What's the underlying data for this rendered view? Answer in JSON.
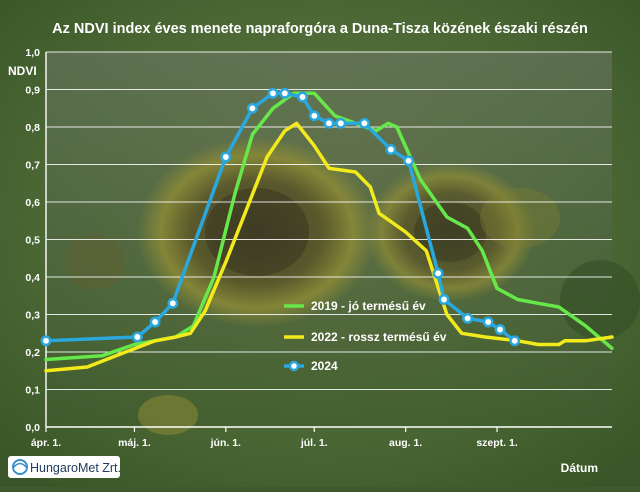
{
  "chart_data": {
    "type": "line",
    "title": "Az NDVI index éves menete napraforgóra a Duna-Tisza közének északi részén",
    "xlabel": "Dátum",
    "ylabel": "NDVI",
    "ylim": [
      0,
      1.0
    ],
    "yticks": [
      "0,0",
      "0,1",
      "0,2",
      "0,3",
      "0,4",
      "0,5",
      "0,6",
      "0,7",
      "0,8",
      "0,9",
      "1,0"
    ],
    "xticks": [
      {
        "label": "ápr. 1.",
        "x": "04-01"
      },
      {
        "label": "máj. 1.",
        "x": "05-01"
      },
      {
        "label": "jún. 1.",
        "x": "06-01"
      },
      {
        "label": "júl. 1.",
        "x": "07-01"
      },
      {
        "label": "aug. 1.",
        "x": "08-01"
      },
      {
        "label": "szept. 1.",
        "x": "09-01"
      }
    ],
    "xlim": [
      "04-01",
      "10-10"
    ],
    "grid": true,
    "legend_position": "right",
    "series": [
      {
        "name": "2019 - jó termésű év",
        "color": "#66e84a",
        "markers": false,
        "points": [
          [
            "04-01",
            0.18
          ],
          [
            "04-20",
            0.19
          ],
          [
            "05-01",
            0.22
          ],
          [
            "05-15",
            0.24
          ],
          [
            "05-21",
            0.27
          ],
          [
            "05-28",
            0.4
          ],
          [
            "06-04",
            0.62
          ],
          [
            "06-10",
            0.78
          ],
          [
            "06-17",
            0.85
          ],
          [
            "06-24",
            0.89
          ],
          [
            "07-01",
            0.89
          ],
          [
            "07-08",
            0.83
          ],
          [
            "07-15",
            0.81
          ],
          [
            "07-22",
            0.79
          ],
          [
            "07-26",
            0.81
          ],
          [
            "07-29",
            0.8
          ],
          [
            "08-06",
            0.66
          ],
          [
            "08-15",
            0.56
          ],
          [
            "08-22",
            0.53
          ],
          [
            "08-27",
            0.47
          ],
          [
            "09-01",
            0.37
          ],
          [
            "09-08",
            0.34
          ],
          [
            "09-15",
            0.33
          ],
          [
            "09-22",
            0.32
          ],
          [
            "10-01",
            0.27
          ],
          [
            "10-10",
            0.21
          ]
        ]
      },
      {
        "name": "2022 - rossz termésű év",
        "color": "#f2ea1a",
        "markers": false,
        "points": [
          [
            "04-01",
            0.15
          ],
          [
            "04-15",
            0.16
          ],
          [
            "04-28",
            0.2
          ],
          [
            "05-08",
            0.23
          ],
          [
            "05-15",
            0.24
          ],
          [
            "05-20",
            0.25
          ],
          [
            "05-25",
            0.31
          ],
          [
            "06-01",
            0.44
          ],
          [
            "06-08",
            0.58
          ],
          [
            "06-15",
            0.72
          ],
          [
            "06-21",
            0.79
          ],
          [
            "06-25",
            0.81
          ],
          [
            "07-01",
            0.75
          ],
          [
            "07-06",
            0.69
          ],
          [
            "07-15",
            0.68
          ],
          [
            "07-20",
            0.64
          ],
          [
            "07-23",
            0.57
          ],
          [
            "08-01",
            0.52
          ],
          [
            "08-08",
            0.47
          ],
          [
            "08-15",
            0.3
          ],
          [
            "08-20",
            0.25
          ],
          [
            "08-28",
            0.24
          ],
          [
            "09-08",
            0.23
          ],
          [
            "09-15",
            0.22
          ],
          [
            "09-22",
            0.22
          ],
          [
            "09-24",
            0.23
          ],
          [
            "10-01",
            0.23
          ],
          [
            "10-10",
            0.24
          ]
        ]
      },
      {
        "name": "2024",
        "color": "#2aa8de",
        "markers": true,
        "points": [
          [
            "04-01",
            0.23
          ],
          [
            "05-02",
            0.24
          ],
          [
            "05-08",
            0.28
          ],
          [
            "05-14",
            0.33
          ],
          [
            "06-01",
            0.72
          ],
          [
            "06-10",
            0.85
          ],
          [
            "06-17",
            0.89
          ],
          [
            "06-21",
            0.89
          ],
          [
            "06-27",
            0.88
          ],
          [
            "07-01",
            0.83
          ],
          [
            "07-06",
            0.81
          ],
          [
            "07-10",
            0.81
          ],
          [
            "07-18",
            0.81
          ],
          [
            "07-27",
            0.74
          ],
          [
            "08-02",
            0.71
          ],
          [
            "08-12",
            0.41
          ],
          [
            "08-14",
            0.34
          ],
          [
            "08-22",
            0.29
          ],
          [
            "08-29",
            0.28
          ],
          [
            "09-02",
            0.26
          ],
          [
            "09-07",
            0.23
          ]
        ]
      }
    ]
  },
  "logo": {
    "text": "HungaroMet Zrt."
  },
  "colors": {
    "plot_background": "#48663a",
    "outer_background": "#3f5a2c",
    "gridline": "#ffffff",
    "text": "#ffffff",
    "logo_box": "#ffffff",
    "logo_text": "#1e3a5c",
    "logo_icon": "#3a8ec9"
  }
}
